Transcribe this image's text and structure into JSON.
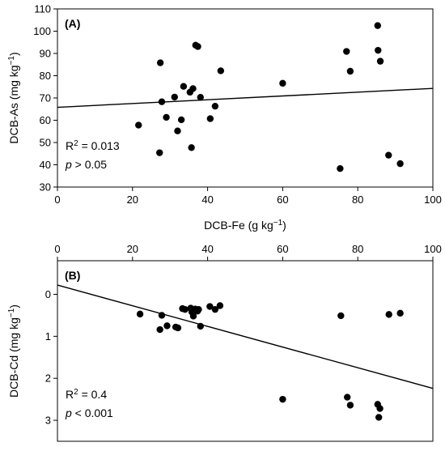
{
  "chart_data": [
    {
      "panel": "(A)",
      "type": "scatter",
      "xlabel": "DCB-Fe (g kg⁻¹)",
      "ylabel": "DCB-As (mg kg⁻¹)",
      "xlim": [
        0,
        100
      ],
      "ylim": [
        30,
        110
      ],
      "xticks": [
        0,
        20,
        40,
        60,
        80,
        100
      ],
      "yticks": [
        30,
        40,
        50,
        60,
        70,
        80,
        90,
        100,
        110
      ],
      "x_axis_position": "bottom",
      "y_inverted": false,
      "grid": false,
      "stats": {
        "r2": "R² = 0.013",
        "p": "p > 0.05"
      },
      "fit_line": {
        "x": [
          0,
          100
        ],
        "y": [
          65.8,
          74.3
        ]
      },
      "points": [
        {
          "x": 21.6,
          "y": 57.8
        },
        {
          "x": 27.2,
          "y": 45.4
        },
        {
          "x": 27.4,
          "y": 85.8
        },
        {
          "x": 27.8,
          "y": 68.3
        },
        {
          "x": 29.0,
          "y": 61.3
        },
        {
          "x": 31.2,
          "y": 70.4
        },
        {
          "x": 32.0,
          "y": 55.2
        },
        {
          "x": 33.0,
          "y": 60.2
        },
        {
          "x": 33.6,
          "y": 75.2
        },
        {
          "x": 35.3,
          "y": 72.6
        },
        {
          "x": 35.7,
          "y": 47.7
        },
        {
          "x": 36.1,
          "y": 74.2
        },
        {
          "x": 36.8,
          "y": 93.7
        },
        {
          "x": 37.4,
          "y": 93.1
        },
        {
          "x": 38.1,
          "y": 70.3
        },
        {
          "x": 40.7,
          "y": 60.7
        },
        {
          "x": 42.0,
          "y": 66.3
        },
        {
          "x": 43.5,
          "y": 82.2
        },
        {
          "x": 60.0,
          "y": 76.6
        },
        {
          "x": 75.3,
          "y": 38.3
        },
        {
          "x": 77.0,
          "y": 90.9
        },
        {
          "x": 78.0,
          "y": 82.0
        },
        {
          "x": 85.3,
          "y": 102.5
        },
        {
          "x": 85.4,
          "y": 91.4
        },
        {
          "x": 86.0,
          "y": 86.5
        },
        {
          "x": 88.2,
          "y": 44.3
        },
        {
          "x": 91.3,
          "y": 40.5
        }
      ]
    },
    {
      "panel": "(B)",
      "type": "scatter",
      "xlabel": "",
      "ylabel": "DCB-Cd (mg kg⁻¹)",
      "xlim": [
        0,
        100
      ],
      "ylim": [
        -0.8,
        3.5
      ],
      "xticks": [
        0,
        20,
        40,
        60,
        80,
        100
      ],
      "yticks": [
        0,
        1,
        2,
        3
      ],
      "x_axis_position": "top",
      "y_inverted": true,
      "grid": false,
      "stats": {
        "r2": "R² = 0.4",
        "p": "p < 0.001"
      },
      "fit_line": {
        "x": [
          0,
          100
        ],
        "y": [
          -0.22,
          2.24
        ]
      },
      "points": [
        {
          "x": 22.0,
          "y": 0.47
        },
        {
          "x": 27.3,
          "y": 0.84
        },
        {
          "x": 27.8,
          "y": 0.5
        },
        {
          "x": 29.2,
          "y": 0.75
        },
        {
          "x": 31.5,
          "y": 0.78
        },
        {
          "x": 32.1,
          "y": 0.8
        },
        {
          "x": 33.3,
          "y": 0.34
        },
        {
          "x": 34.0,
          "y": 0.36
        },
        {
          "x": 35.5,
          "y": 0.33
        },
        {
          "x": 35.8,
          "y": 0.42
        },
        {
          "x": 36.2,
          "y": 0.52
        },
        {
          "x": 36.7,
          "y": 0.35
        },
        {
          "x": 37.3,
          "y": 0.4
        },
        {
          "x": 37.6,
          "y": 0.36
        },
        {
          "x": 38.1,
          "y": 0.76
        },
        {
          "x": 40.6,
          "y": 0.29
        },
        {
          "x": 42.0,
          "y": 0.36
        },
        {
          "x": 43.3,
          "y": 0.27
        },
        {
          "x": 60.0,
          "y": 2.5
        },
        {
          "x": 75.5,
          "y": 0.51
        },
        {
          "x": 77.2,
          "y": 2.45
        },
        {
          "x": 78.0,
          "y": 2.64
        },
        {
          "x": 85.3,
          "y": 2.62
        },
        {
          "x": 85.6,
          "y": 2.93
        },
        {
          "x": 85.9,
          "y": 2.72
        },
        {
          "x": 88.3,
          "y": 0.48
        },
        {
          "x": 91.3,
          "y": 0.45
        }
      ]
    }
  ]
}
